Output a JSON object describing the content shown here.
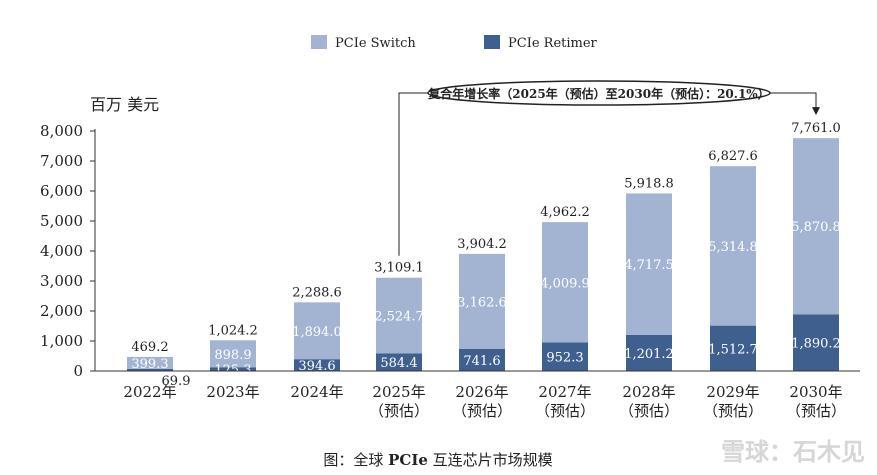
{
  "chart_data": {
    "type": "bar",
    "stacked": true,
    "unit_label": "百万 美元",
    "categories": [
      [
        "2022年"
      ],
      [
        "2023年"
      ],
      [
        "2024年"
      ],
      [
        "2025年",
        "（预估）"
      ],
      [
        "2026年",
        "（预估）"
      ],
      [
        "2027年",
        "（预估）"
      ],
      [
        "2028年",
        "（预估）"
      ],
      [
        "2029年",
        "（预估）"
      ],
      [
        "2030年",
        "（预估）"
      ]
    ],
    "series": [
      {
        "name": "PCIe Retimer",
        "color": "#3f5f8f",
        "values": [
          69.9,
          125.3,
          394.6,
          584.4,
          741.6,
          952.3,
          1201.2,
          1512.7,
          1890.2
        ],
        "labels": [
          "69.9",
          "125.3",
          "394.6",
          "584.4",
          "741.6",
          "952.3",
          "1,201.2",
          "1,512.7",
          "1,890.2"
        ]
      },
      {
        "name": "PCIe Switch",
        "color": "#a3b4d3",
        "values": [
          399.3,
          898.9,
          1894.0,
          2524.7,
          3162.6,
          4009.9,
          4717.5,
          5314.8,
          5870.8
        ],
        "labels": [
          "399.3",
          "898.9",
          "1,894.0",
          "2,524.7",
          "3,162.6",
          "4,009.9",
          "4,717.5",
          "5,314.8",
          "5,870.8"
        ]
      }
    ],
    "totals": [
      469.2,
      1024.2,
      2288.6,
      3109.1,
      3904.2,
      4962.2,
      5918.8,
      6827.6,
      7761.0
    ],
    "total_labels": [
      "469.2",
      "1,024.2",
      "2,288.6",
      "3,109.1",
      "3,904.2",
      "4,962.2",
      "5,918.8",
      "6,827.6",
      "7,761.0"
    ],
    "ylim": [
      0,
      8000
    ],
    "yticks": [
      0,
      1000,
      2000,
      3000,
      4000,
      5000,
      6000,
      7000,
      8000
    ],
    "ytick_labels": [
      "0",
      "1,000",
      "2,000",
      "3,000",
      "4,000",
      "5,000",
      "6,000",
      "7,000",
      "8,000"
    ],
    "annotation": "复合年增长率（2025年（预估）至2030年（预估）：20.1%）",
    "caption_prefix": "图：全球 ",
    "caption_bold": "PCIe",
    "caption_suffix": " 互连芯片市场规模",
    "grid": false,
    "legend_position": "top"
  },
  "watermark": "雪球：石木见"
}
